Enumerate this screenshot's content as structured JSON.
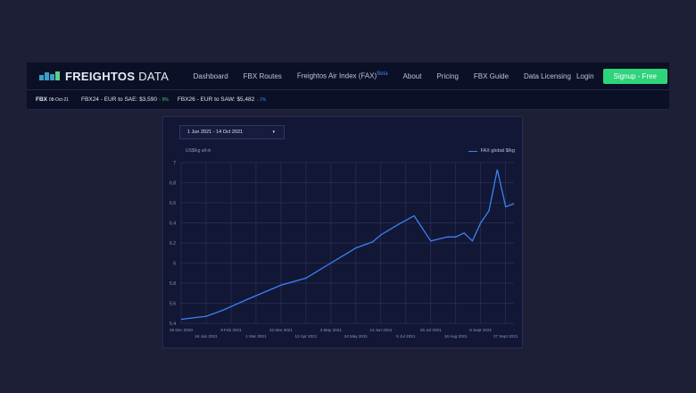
{
  "nav": {
    "logo_bold": "FREIGHTOS",
    "logo_light": " DATA",
    "items": [
      "Dashboard",
      "FBX Routes",
      "Freightos Air Index (FAX)",
      "About",
      "Pricing",
      "FBX Guide",
      "Data Licensing",
      "Login"
    ],
    "beta": "Beta",
    "signup": "Signup - Free"
  },
  "ticker": {
    "label": "FBX",
    "date": "08-Oct-21",
    "items": [
      {
        "text": "FBX24 - EUR to SAE: $3,590",
        "change": "↑ 9%",
        "dir": "up"
      },
      {
        "text": "FBX26 - EUR to SAW: $5,482",
        "change": "↓ 2%",
        "dir": "down"
      }
    ]
  },
  "colors": {
    "accent": "#2fd47a",
    "line": "#3b82f6"
  },
  "card": {
    "date_range": "1 Jun 2021 - 14 Oct 2021",
    "caret": "▾",
    "unit": "US$/kg all-in",
    "legend": "FAX global $/kg"
  },
  "chart_data": {
    "type": "line",
    "ylabel": "US$/kg all-in",
    "ylim": [
      5.4,
      7
    ],
    "grid": true,
    "legend": "top-right",
    "yticks": [
      "7",
      "6.8",
      "6.6",
      "6.4",
      "6.2",
      "6",
      "5.8",
      "5.6",
      "5.4"
    ],
    "xticks": [
      "28 Dec 2020",
      "18 Jan 2021",
      "8 Feb 2021",
      "1 Mar 2021",
      "22 Mar 2021",
      "12 Apr 2021",
      "3 May 2021",
      "24 May 2021",
      "14 Jun 2021",
      "5 Jul 2021",
      "26 Jul 2021",
      "16 Aug 2021",
      "6 Sept 2021",
      "27 Sept 2021"
    ],
    "series": [
      {
        "name": "FAX global $/kg",
        "points": [
          [
            "2020-12-28",
            5.44
          ],
          [
            "2021-01-18",
            5.47
          ],
          [
            "2021-02-01",
            5.53
          ],
          [
            "2021-02-22",
            5.64
          ],
          [
            "2021-03-22",
            5.78
          ],
          [
            "2021-04-12",
            5.85
          ],
          [
            "2021-05-03",
            6.0
          ],
          [
            "2021-05-17",
            6.1
          ],
          [
            "2021-05-24",
            6.15
          ],
          [
            "2021-06-07",
            6.21
          ],
          [
            "2021-06-14",
            6.28
          ],
          [
            "2021-06-28",
            6.38
          ],
          [
            "2021-07-12",
            6.47
          ],
          [
            "2021-07-26",
            6.22
          ],
          [
            "2021-08-09",
            6.26
          ],
          [
            "2021-08-16",
            6.26
          ],
          [
            "2021-08-23",
            6.3
          ],
          [
            "2021-08-30",
            6.22
          ],
          [
            "2021-09-06",
            6.4
          ],
          [
            "2021-09-13",
            6.52
          ],
          [
            "2021-09-20",
            6.93
          ],
          [
            "2021-09-27",
            6.56
          ],
          [
            "2021-10-04",
            6.59
          ]
        ]
      }
    ]
  }
}
